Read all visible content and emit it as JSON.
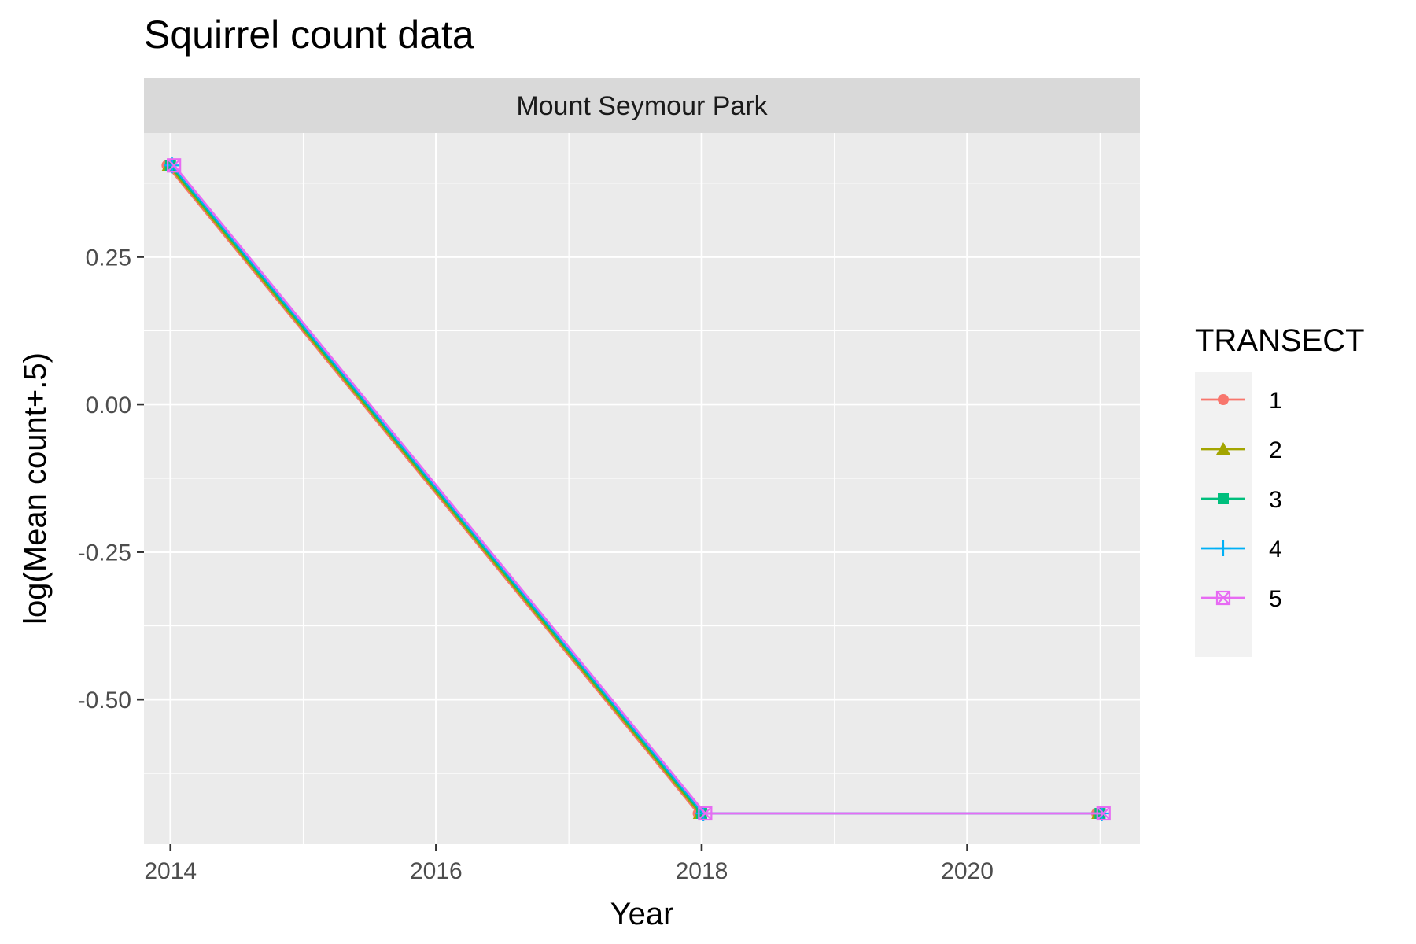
{
  "chart_data": {
    "type": "line",
    "title": "Squirrel count data",
    "facet": "Mount Seymour Park",
    "xlabel": "Year",
    "ylabel": "log(Mean count+.5)",
    "x_ticks": [
      2014,
      2016,
      2018,
      2020
    ],
    "y_ticks": [
      0.25,
      0.0,
      -0.25,
      -0.5
    ],
    "y_tick_labels": [
      "0.25",
      "0.00",
      "-0.25",
      "-0.50"
    ],
    "x_tick_labels": [
      "2014",
      "2016",
      "2018",
      "2020"
    ],
    "xlim": [
      2013.8,
      2021.3
    ],
    "ylim": [
      -0.745,
      0.46
    ],
    "grid": true,
    "legend_title": "TRANSECT",
    "legend_position": "right",
    "series": [
      {
        "name": "1",
        "color": "#F8766D",
        "shape": "circle",
        "x": [
          2014,
          2018,
          2021
        ],
        "y": [
          0.405,
          -0.693,
          -0.693
        ]
      },
      {
        "name": "2",
        "color": "#A3A500",
        "shape": "triangle",
        "x": [
          2014,
          2018,
          2021
        ],
        "y": [
          0.405,
          -0.693,
          -0.693
        ]
      },
      {
        "name": "3",
        "color": "#00BF7D",
        "shape": "square",
        "x": [
          2014,
          2018,
          2021
        ],
        "y": [
          0.405,
          -0.693,
          -0.693
        ]
      },
      {
        "name": "4",
        "color": "#00B0F6",
        "shape": "plus",
        "x": [
          2014,
          2018,
          2021
        ],
        "y": [
          0.405,
          -0.693,
          -0.693
        ]
      },
      {
        "name": "5",
        "color": "#E76BF3",
        "shape": "square-cross",
        "x": [
          2014,
          2018,
          2021
        ],
        "y": [
          0.405,
          -0.693,
          -0.693
        ]
      }
    ]
  }
}
